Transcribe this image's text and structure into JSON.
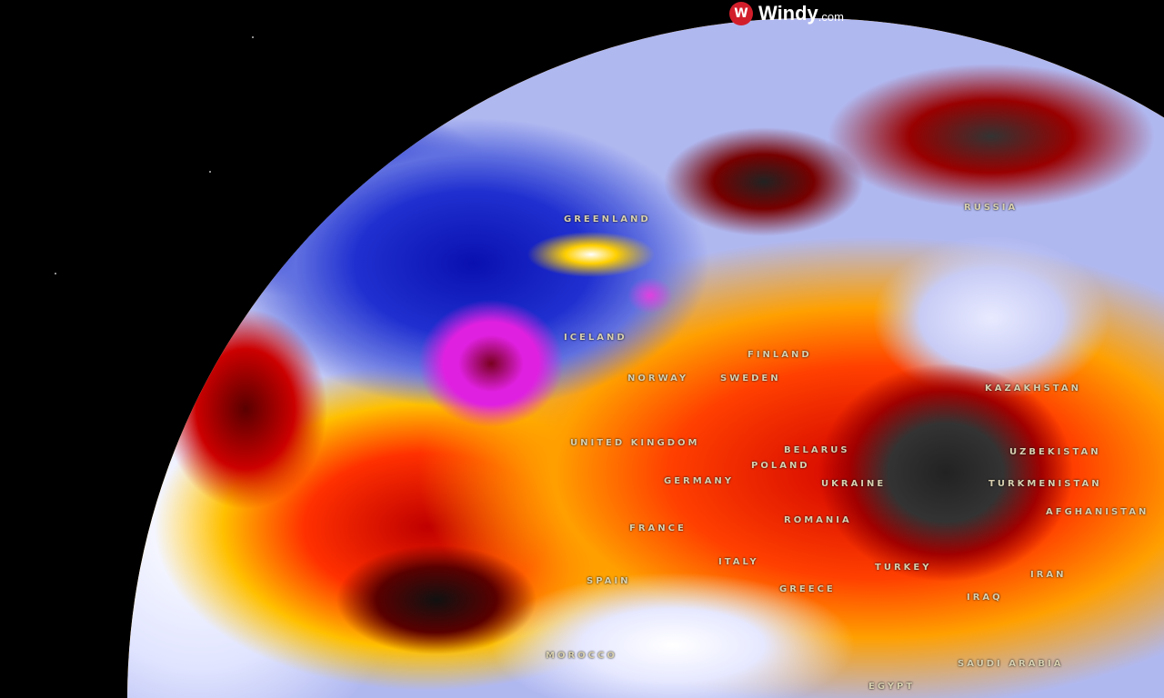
{
  "brand": {
    "name": "Windy",
    "domain": ".com",
    "logo_icon": "windy-logo-icon",
    "accent": "#d21e2b"
  },
  "map": {
    "colors": {
      "cold": "#2030d0",
      "very_cold": "#e020e0",
      "warm": "#ffb000",
      "hot": "#d00000",
      "extreme": "#333333"
    },
    "labels": {
      "greenland": "GREENLAND",
      "russia": "RUSSIA",
      "iceland": "ICELAND",
      "finland": "FINLAND",
      "norway": "NORWAY",
      "sweden": "SWEDEN",
      "united_kingdom": "UNITED KINGDOM",
      "belarus": "BELARUS",
      "poland": "POLAND",
      "germany": "GERMANY",
      "ukraine": "UKRAINE",
      "kazakhstan": "KAZAKHSTAN",
      "uzbekistan": "UZBEKISTAN",
      "turkmenistan": "TURKMENISTAN",
      "afghanistan": "AFGHANISTAN",
      "romania": "ROMANIA",
      "france": "FRANCE",
      "spain": "SPAIN",
      "italy": "ITALY",
      "greece": "GREECE",
      "turkey": "TURKEY",
      "iraq": "IRAQ",
      "iran": "IRAN",
      "saudi_arabia": "SAUDI ARABIA",
      "morocco": "MOROCCO",
      "egypt": "EGYPT"
    }
  }
}
